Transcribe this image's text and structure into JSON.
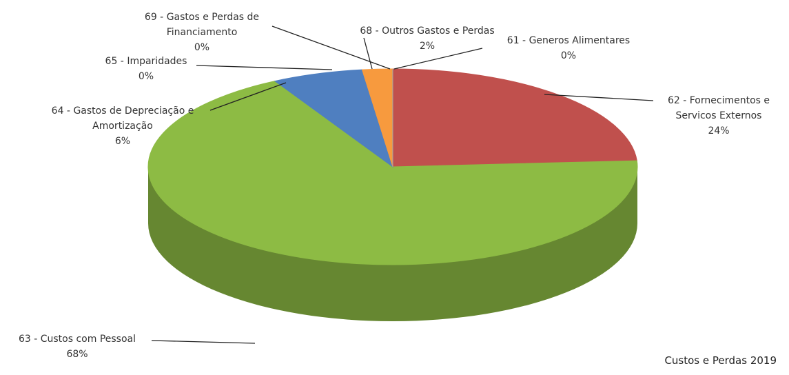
{
  "chart_data": {
    "type": "pie",
    "title": "Custos e Perdas 2019",
    "categories": [
      "61 - Generos Alimentares",
      "62 - Fornecimentos e Servicos Externos",
      "63 - Custos com Pessoal",
      "64 - Gastos de Depreciação e Amortização",
      "65 - Imparidades",
      "68 - Outros Gastos e Perdas",
      "69 - Gastos e Perdas de Financiamento"
    ],
    "values": [
      0,
      24,
      68,
      6,
      0,
      2,
      0
    ],
    "value_labels": [
      "0%",
      "24%",
      "68%",
      "6%",
      "0%",
      "2%",
      "0%"
    ],
    "colors": [
      "#8796a8",
      "#c0504d",
      "#8dbb44",
      "#4f7fc0",
      "#5a7fb5",
      "#f79a3e",
      "#9aa3ad"
    ],
    "three_d": true
  }
}
